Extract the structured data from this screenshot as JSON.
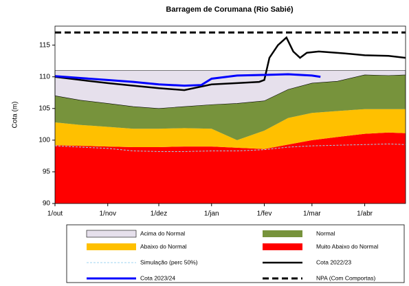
{
  "chart_data": {
    "type": "line",
    "title": "Barragem de  Corumana (Rio Sabié)",
    "y_label": "Cota (m)",
    "xlim": [
      0,
      206
    ],
    "ylim": [
      90,
      118
    ],
    "xticks": [
      {
        "value": 0,
        "label": "1/out"
      },
      {
        "value": 31,
        "label": "1/nov"
      },
      {
        "value": 61,
        "label": "1/dez"
      },
      {
        "value": 92,
        "label": "1/jan"
      },
      {
        "value": 123,
        "label": "1/fev"
      },
      {
        "value": 151,
        "label": "1/mar"
      },
      {
        "value": 182,
        "label": "1/abr"
      }
    ],
    "yticks": [
      90,
      95,
      100,
      105,
      110,
      115
    ],
    "series": [
      {
        "name": "Muito Abaixo do Normal",
        "color": "#ff0000",
        "area": true,
        "x": [
          0,
          15,
          31,
          46,
          61,
          76,
          92,
          107,
          123,
          137,
          151,
          166,
          182,
          196,
          206
        ],
        "values": [
          99.2,
          99.1,
          99,
          98.9,
          98.9,
          99,
          99,
          98.8,
          98.6,
          99.3,
          100,
          100.5,
          101,
          101.2,
          101.1
        ]
      },
      {
        "name": "Abaixo do Normal",
        "color": "#ffc000",
        "area": true,
        "x": [
          0,
          15,
          31,
          46,
          61,
          76,
          92,
          107,
          123,
          137,
          151,
          166,
          182,
          196,
          206
        ],
        "values": [
          3.6,
          3.3,
          3.1,
          2.9,
          2.9,
          2.9,
          2.8,
          1.2,
          2.9,
          4.2,
          4.3,
          4.1,
          3.9,
          3.7,
          3.8
        ]
      },
      {
        "name": "Normal",
        "color": "#77933c",
        "area": true,
        "x": [
          0,
          15,
          31,
          46,
          61,
          76,
          92,
          107,
          123,
          137,
          151,
          166,
          182,
          196,
          206
        ],
        "values": [
          4.2,
          3.9,
          3.7,
          3.5,
          3.2,
          3.4,
          3.8,
          5.8,
          4.7,
          4.5,
          4.7,
          4.7,
          5.4,
          5.3,
          5.4
        ]
      },
      {
        "name": "Acima do Normal",
        "color": "#e6e0ec",
        "area": true,
        "x": [
          0,
          15,
          31,
          46,
          61,
          76,
          92,
          107,
          123,
          137,
          151,
          166,
          182,
          196,
          206
        ],
        "values": [
          4,
          4.7,
          5.2,
          5.7,
          6,
          5.7,
          5.4,
          5.2,
          4.8,
          3,
          2,
          1.7,
          0.7,
          0.8,
          0.7
        ]
      },
      {
        "name": "Simulação (perc 50%)",
        "color": "#9dd6f0",
        "dash": "3,2",
        "width": 1,
        "x": [
          0,
          15,
          31,
          46,
          61,
          76,
          92,
          107,
          123,
          137,
          151,
          166,
          182,
          196,
          206
        ],
        "values": [
          99.1,
          98.9,
          98.7,
          98.3,
          98.2,
          98.2,
          98.3,
          98.3,
          98.5,
          98.9,
          99.1,
          99.2,
          99.3,
          99.4,
          99.3
        ]
      },
      {
        "name": "Cota 2022/23",
        "color": "#000000",
        "width": 2.5,
        "x": [
          0,
          15,
          31,
          46,
          61,
          76,
          92,
          107,
          120,
          123,
          126,
          131,
          136,
          140,
          144,
          148,
          155,
          170,
          182,
          196,
          206
        ],
        "values": [
          110,
          109.5,
          109,
          108.6,
          108.2,
          107.9,
          108.8,
          109,
          109.2,
          109.5,
          113,
          115,
          116.2,
          114,
          113,
          113.8,
          114,
          113.7,
          113.4,
          113.3,
          113
        ]
      },
      {
        "name": "Cota 2023/24",
        "color": "#0000ff",
        "width": 3,
        "x": [
          0,
          15,
          31,
          46,
          61,
          76,
          86,
          92,
          107,
          123,
          137,
          151,
          156
        ],
        "values": [
          110.1,
          109.8,
          109.5,
          109.2,
          108.8,
          108.6,
          108.7,
          109.7,
          110.2,
          110.3,
          110.4,
          110.2,
          110
        ]
      },
      {
        "name": "NPA (Com Comportas)",
        "color": "#000000",
        "dash": "9,5",
        "width": 3,
        "x": [
          0,
          206
        ],
        "values": [
          117,
          117
        ]
      }
    ]
  }
}
